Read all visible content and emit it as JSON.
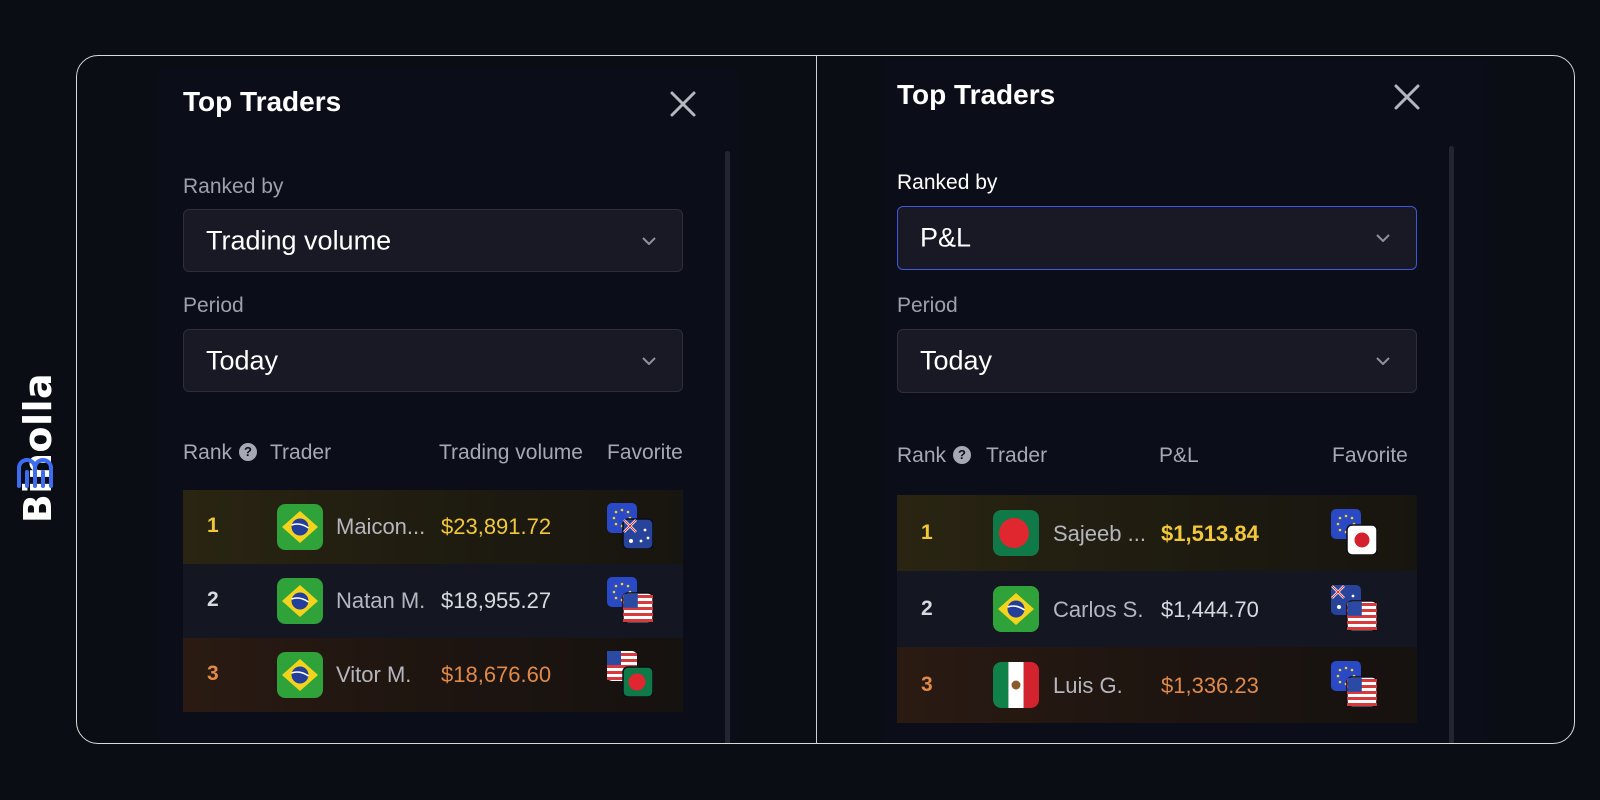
{
  "brand": {
    "name": "Binolla",
    "color": "#3d6bf2"
  },
  "panels": [
    {
      "title": "Top Traders",
      "ranked_by_label": "Ranked by",
      "ranked_by_value": "Trading volume",
      "period_label": "Period",
      "period_value": "Today",
      "columns": {
        "rank": "Rank",
        "trader": "Trader",
        "value": "Trading volume",
        "favorite": "Favorite"
      },
      "rows": [
        {
          "rank": "1",
          "name": "Maicon...",
          "value": "$23,891.72",
          "country": "brazil",
          "favorite": "EUR/AUD"
        },
        {
          "rank": "2",
          "name": "Natan M.",
          "value": "$18,955.27",
          "country": "brazil",
          "favorite": "EUR/USD"
        },
        {
          "rank": "3",
          "name": "Vitor M.",
          "value": "$18,676.60",
          "country": "brazil",
          "favorite": "USD/BDT"
        }
      ]
    },
    {
      "title": "Top Traders",
      "ranked_by_label": "Ranked by",
      "ranked_by_value": "P&L",
      "period_label": "Period",
      "period_value": "Today",
      "columns": {
        "rank": "Rank",
        "trader": "Trader",
        "value": "P&L",
        "favorite": "Favorite"
      },
      "rows": [
        {
          "rank": "1",
          "name": "Sajeeb ...",
          "value": "$1,513.84",
          "country": "bangladesh",
          "favorite": "EUR/JPY"
        },
        {
          "rank": "2",
          "name": "Carlos S.",
          "value": "$1,444.70",
          "country": "brazil",
          "favorite": "AUD/USD"
        },
        {
          "rank": "3",
          "name": "Luis G.",
          "value": "$1,336.23",
          "country": "mexico",
          "favorite": "EUR/USD"
        }
      ]
    }
  ],
  "colors": {
    "gold": "#f2c83a",
    "silver": "#d8dae0",
    "bronze": "#e08a4a",
    "accent_border": "#3d58d8"
  }
}
